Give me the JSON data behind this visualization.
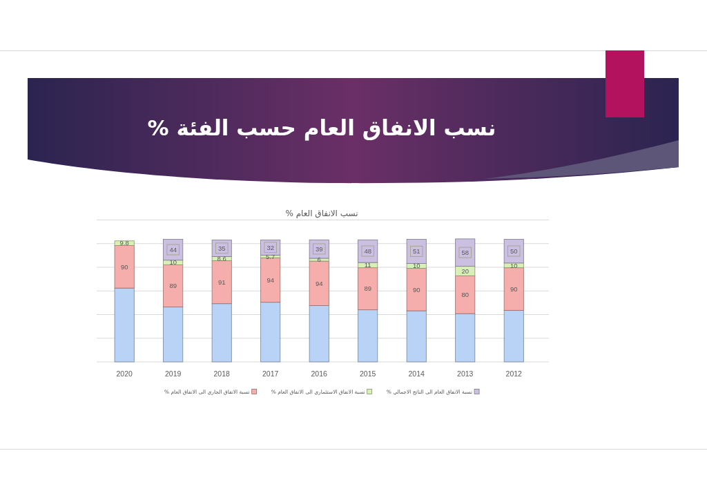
{
  "chart_data": {
    "type": "bar",
    "stacked": true,
    "title": "نسب الانفاق العام حسب الفئة %",
    "subtitle": "نسب الانفاق العام %",
    "categories": [
      "2020",
      "2019",
      "2018",
      "2017",
      "2016",
      "2015",
      "2014",
      "2013",
      "2012"
    ],
    "ylim": [
      0,
      300
    ],
    "yticks": [
      {
        "value": 0,
        "label": null
      },
      {
        "value": 50,
        "label": null
      },
      {
        "value": 100,
        "label": null
      },
      {
        "value": 150,
        "label": null
      },
      {
        "value": 200,
        "label": null
      },
      {
        "value": 250,
        "label": null
      },
      {
        "value": 300,
        "label": null
      }
    ],
    "tick_labels": "x",
    "grid": "y",
    "legend": "bottom",
    "series": [
      {
        "color": "#b9d3f6",
        "values": [
          156,
          116,
          123,
          126,
          119,
          110,
          108,
          102,
          109
        ]
      },
      {
        "name": "نسبة الانفاق الجاري الى الانفاق العام %",
        "color": "#f5aeac",
        "values": [
          90,
          89,
          91,
          94,
          94,
          89,
          90,
          80,
          90
        ],
        "value_labels": [
          "90",
          "89",
          "91",
          "94",
          "94",
          "89",
          "90",
          "80",
          "90"
        ]
      },
      {
        "name": "نسبة الانفاق الاستثماري الى الانفاق العام %",
        "color": "#d8f0b6",
        "values": [
          9.8,
          10,
          8.6,
          5.7,
          6,
          11,
          10,
          20,
          10
        ],
        "value_labels": [
          "9.8",
          "10",
          "8.6",
          "5.7",
          "6",
          "11",
          "10",
          "20",
          "10"
        ]
      },
      {
        "name": "نسبة الانفاق العام الى الناتج الاجمالي %",
        "color": "#cbc0e2",
        "values": [
          null,
          44,
          35,
          32,
          39,
          48,
          51,
          58,
          50
        ],
        "value_labels": [
          null,
          "44",
          "35",
          "32",
          "39",
          "48",
          "51",
          "58",
          "50"
        ]
      }
    ]
  }
}
